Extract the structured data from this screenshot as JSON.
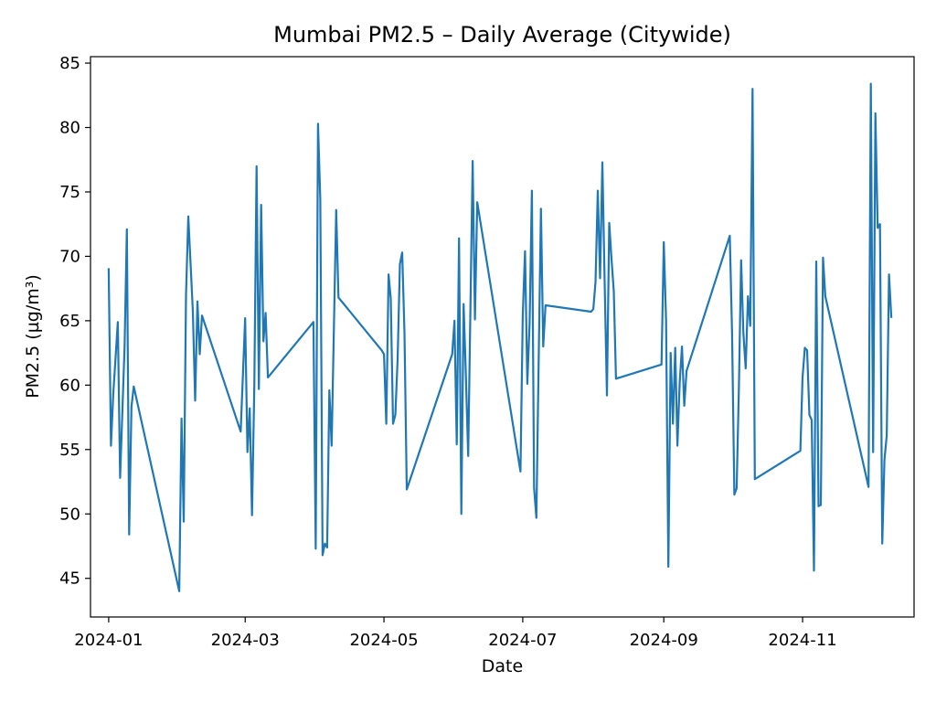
{
  "chart_data": {
    "type": "line",
    "title": "Mumbai PM2.5 – Daily Average (Citywide)",
    "xlabel": "Date",
    "ylabel": "PM2.5 (µg/m³)",
    "grid": false,
    "ylim": [
      42,
      85.5
    ],
    "xlim": [
      "2023-12-24",
      "2024-12-20"
    ],
    "x_ticks": [
      "2024-01",
      "2024-03",
      "2024-05",
      "2024-07",
      "2024-09",
      "2024-11"
    ],
    "y_ticks": [
      45,
      50,
      55,
      60,
      65,
      70,
      75,
      80,
      85
    ],
    "colors": {
      "series": "#1f77b4"
    },
    "series": [
      {
        "values": [
          [
            "2024-01-01",
            69.0
          ],
          [
            "2024-01-02",
            55.3
          ],
          [
            "2024-01-03",
            59.3
          ],
          [
            "2024-01-05",
            64.9
          ],
          [
            "2024-01-06",
            52.8
          ],
          [
            "2024-01-08",
            63.0
          ],
          [
            "2024-01-09",
            72.1
          ],
          [
            "2024-01-10",
            48.4
          ],
          [
            "2024-01-11",
            58.3
          ],
          [
            "2024-01-12",
            59.9
          ],
          [
            "2024-02-01",
            44.0
          ],
          [
            "2024-02-02",
            57.4
          ],
          [
            "2024-02-03",
            49.4
          ],
          [
            "2024-02-04",
            67.0
          ],
          [
            "2024-02-05",
            73.1
          ],
          [
            "2024-02-07",
            65.7
          ],
          [
            "2024-02-08",
            58.8
          ],
          [
            "2024-02-09",
            66.5
          ],
          [
            "2024-02-10",
            62.4
          ],
          [
            "2024-02-11",
            65.4
          ],
          [
            "2024-02-28",
            56.4
          ],
          [
            "2024-03-01",
            65.2
          ],
          [
            "2024-03-02",
            54.8
          ],
          [
            "2024-03-03",
            58.2
          ],
          [
            "2024-03-04",
            49.9
          ],
          [
            "2024-03-05",
            59.8
          ],
          [
            "2024-03-06",
            77.0
          ],
          [
            "2024-03-07",
            59.7
          ],
          [
            "2024-03-08",
            74.0
          ],
          [
            "2024-03-09",
            63.4
          ],
          [
            "2024-03-10",
            65.6
          ],
          [
            "2024-03-11",
            60.6
          ],
          [
            "2024-03-31",
            64.9
          ],
          [
            "2024-04-01",
            47.3
          ],
          [
            "2024-04-02",
            80.3
          ],
          [
            "2024-04-03",
            74.4
          ],
          [
            "2024-04-04",
            46.8
          ],
          [
            "2024-04-05",
            47.7
          ],
          [
            "2024-04-06",
            47.4
          ],
          [
            "2024-04-07",
            59.6
          ],
          [
            "2024-04-08",
            55.3
          ],
          [
            "2024-04-10",
            73.6
          ],
          [
            "2024-04-11",
            66.8
          ],
          [
            "2024-04-30",
            62.7
          ],
          [
            "2024-05-01",
            62.4
          ],
          [
            "2024-05-02",
            57.0
          ],
          [
            "2024-05-03",
            68.6
          ],
          [
            "2024-05-04",
            66.7
          ],
          [
            "2024-05-05",
            57.0
          ],
          [
            "2024-05-06",
            57.7
          ],
          [
            "2024-05-07",
            62.0
          ],
          [
            "2024-05-08",
            69.4
          ],
          [
            "2024-05-09",
            70.3
          ],
          [
            "2024-05-10",
            64.1
          ],
          [
            "2024-05-11",
            51.9
          ],
          [
            "2024-05-31",
            62.4
          ],
          [
            "2024-06-01",
            65.0
          ],
          [
            "2024-06-02",
            55.4
          ],
          [
            "2024-06-03",
            71.4
          ],
          [
            "2024-06-04",
            50.0
          ],
          [
            "2024-06-05",
            66.3
          ],
          [
            "2024-06-06",
            60.7
          ],
          [
            "2024-06-07",
            54.5
          ],
          [
            "2024-06-09",
            77.4
          ],
          [
            "2024-06-10",
            65.1
          ],
          [
            "2024-06-11",
            74.2
          ],
          [
            "2024-06-30",
            53.3
          ],
          [
            "2024-07-01",
            65.4
          ],
          [
            "2024-07-02",
            70.4
          ],
          [
            "2024-07-03",
            60.1
          ],
          [
            "2024-07-04",
            64.8
          ],
          [
            "2024-07-05",
            75.1
          ],
          [
            "2024-07-06",
            52.0
          ],
          [
            "2024-07-07",
            49.7
          ],
          [
            "2024-07-08",
            61.8
          ],
          [
            "2024-07-09",
            73.7
          ],
          [
            "2024-07-10",
            63.0
          ],
          [
            "2024-07-11",
            66.2
          ],
          [
            "2024-07-31",
            65.7
          ],
          [
            "2024-08-01",
            65.9
          ],
          [
            "2024-08-02",
            68.0
          ],
          [
            "2024-08-03",
            75.1
          ],
          [
            "2024-08-04",
            68.3
          ],
          [
            "2024-08-05",
            77.3
          ],
          [
            "2024-08-06",
            68.0
          ],
          [
            "2024-08-07",
            59.2
          ],
          [
            "2024-08-08",
            72.6
          ],
          [
            "2024-08-09",
            69.8
          ],
          [
            "2024-08-10",
            67.3
          ],
          [
            "2024-08-11",
            60.5
          ],
          [
            "2024-08-31",
            61.6
          ],
          [
            "2024-09-01",
            71.1
          ],
          [
            "2024-09-02",
            65.0
          ],
          [
            "2024-09-03",
            45.9
          ],
          [
            "2024-09-04",
            62.5
          ],
          [
            "2024-09-05",
            57.0
          ],
          [
            "2024-09-06",
            62.9
          ],
          [
            "2024-09-07",
            55.3
          ],
          [
            "2024-09-08",
            60.2
          ],
          [
            "2024-09-09",
            63.0
          ],
          [
            "2024-09-10",
            58.4
          ],
          [
            "2024-09-11",
            61.1
          ],
          [
            "2024-09-30",
            71.6
          ],
          [
            "2024-10-01",
            64.0
          ],
          [
            "2024-10-02",
            51.5
          ],
          [
            "2024-10-03",
            52.0
          ],
          [
            "2024-10-04",
            59.9
          ],
          [
            "2024-10-05",
            69.7
          ],
          [
            "2024-10-06",
            64.0
          ],
          [
            "2024-10-07",
            61.3
          ],
          [
            "2024-10-08",
            66.9
          ],
          [
            "2024-10-09",
            64.6
          ],
          [
            "2024-10-10",
            83.0
          ],
          [
            "2024-10-11",
            52.7
          ],
          [
            "2024-10-31",
            54.9
          ],
          [
            "2024-11-01",
            60.6
          ],
          [
            "2024-11-02",
            62.9
          ],
          [
            "2024-11-03",
            62.7
          ],
          [
            "2024-11-04",
            57.7
          ],
          [
            "2024-11-05",
            57.3
          ],
          [
            "2024-11-06",
            45.6
          ],
          [
            "2024-11-07",
            69.6
          ],
          [
            "2024-11-08",
            50.6
          ],
          [
            "2024-11-09",
            50.7
          ],
          [
            "2024-11-10",
            69.9
          ],
          [
            "2024-11-11",
            66.9
          ],
          [
            "2024-11-30",
            52.1
          ],
          [
            "2024-12-01",
            83.4
          ],
          [
            "2024-12-02",
            54.8
          ],
          [
            "2024-12-03",
            81.1
          ],
          [
            "2024-12-04",
            72.2
          ],
          [
            "2024-12-05",
            72.5
          ],
          [
            "2024-12-06",
            47.7
          ],
          [
            "2024-12-07",
            54.2
          ],
          [
            "2024-12-08",
            56.1
          ],
          [
            "2024-12-09",
            68.6
          ],
          [
            "2024-12-10",
            65.3
          ]
        ]
      }
    ]
  }
}
